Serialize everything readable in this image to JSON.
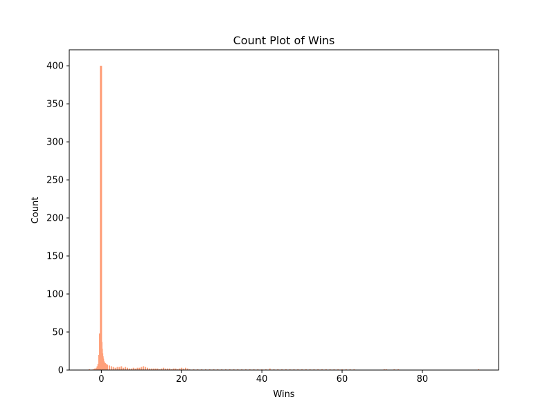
{
  "chart_data": {
    "type": "bar",
    "title": "Count Plot of Wins",
    "xlabel": "Wins",
    "ylabel": "Count",
    "xlim": [
      -8,
      99
    ],
    "ylim": [
      0,
      421
    ],
    "xticks": [
      0,
      20,
      40,
      60,
      80
    ],
    "yticks": [
      0,
      50,
      100,
      150,
      200,
      250,
      300,
      350,
      400
    ],
    "grid": false,
    "bar_color": "#ffa07a",
    "bar_width": 0.35,
    "x": [
      -3.0,
      -2.0,
      -1.6,
      -1.2,
      -1.0,
      -0.8,
      -0.6,
      -0.4,
      -0.2,
      0.0,
      0.1,
      0.2,
      0.3,
      0.4,
      0.5,
      0.6,
      0.8,
      1.0,
      1.2,
      1.5,
      2.0,
      2.5,
      3.0,
      3.5,
      4.0,
      4.5,
      5.0,
      5.5,
      6.0,
      6.5,
      7.0,
      7.5,
      8.0,
      8.5,
      9.0,
      9.5,
      10.0,
      10.5,
      11.0,
      11.5,
      12.0,
      12.5,
      13.0,
      13.5,
      14.0,
      14.5,
      15.0,
      15.5,
      16.0,
      16.5,
      17.0,
      17.5,
      18.0,
      18.5,
      19.0,
      19.5,
      20.0,
      20.5,
      21.0,
      21.5,
      22.0,
      23.0,
      24.0,
      25.0,
      26.0,
      27.0,
      28.0,
      29.0,
      30.0,
      31.0,
      32.0,
      33.0,
      34.0,
      35.0,
      36.0,
      37.0,
      38.0,
      39.0,
      40.0,
      41.0,
      42.0,
      43.0,
      44.0,
      45.0,
      46.0,
      47.0,
      48.0,
      49.0,
      50.0,
      51.0,
      52.0,
      53.0,
      54.0,
      55.0,
      56.0,
      57.0,
      58.0,
      59.0,
      60.0,
      61.0,
      62.0,
      63.0,
      70.5,
      71.0,
      73.0,
      74.0,
      94.0
    ],
    "values": [
      1,
      1,
      2,
      3,
      5,
      8,
      20,
      48,
      400,
      400,
      37,
      28,
      22,
      18,
      15,
      12,
      10,
      9,
      8,
      7,
      6,
      5,
      4,
      3,
      4,
      4,
      5,
      3,
      4,
      3,
      2,
      2,
      3,
      2,
      3,
      3,
      4,
      5,
      4,
      3,
      2,
      2,
      2,
      2,
      2,
      1,
      2,
      3,
      2,
      2,
      2,
      1,
      2,
      2,
      1,
      2,
      3,
      2,
      3,
      2,
      1,
      1,
      1,
      1,
      1,
      1,
      1,
      1,
      1,
      1,
      1,
      1,
      1,
      1,
      1,
      1,
      1,
      1,
      1,
      1,
      2,
      1,
      1,
      1,
      1,
      1,
      1,
      1,
      1,
      1,
      1,
      1,
      1,
      1,
      1,
      1,
      1,
      1,
      1,
      1,
      1,
      1,
      1,
      1,
      1,
      1,
      1
    ]
  }
}
